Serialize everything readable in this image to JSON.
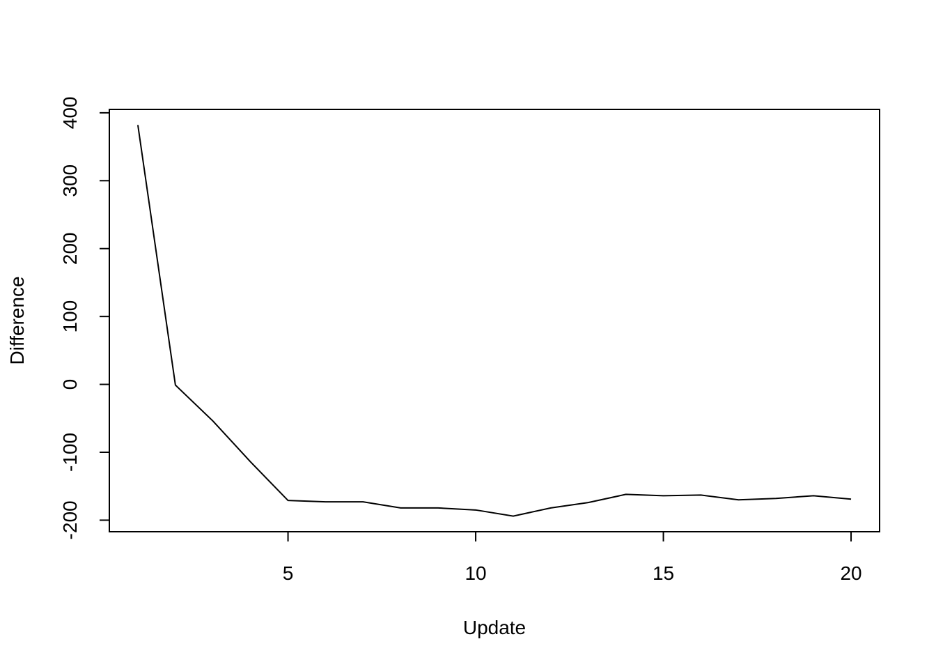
{
  "chart_data": {
    "type": "line",
    "title": "",
    "xlabel": "Update",
    "ylabel": "Difference",
    "x": [
      1,
      2,
      3,
      4,
      5,
      6,
      7,
      8,
      9,
      10,
      11,
      12,
      13,
      14,
      15,
      16,
      17,
      18,
      19,
      20
    ],
    "y": [
      382,
      -1,
      -54,
      -114,
      -171,
      -173,
      -173,
      -182,
      -182,
      -185,
      -194,
      -182,
      -174,
      -162,
      -164,
      -163,
      -170,
      -168,
      -164,
      -169
    ],
    "xlim": [
      0.24,
      20.76
    ],
    "ylim": [
      -217,
      405
    ],
    "xticks": [
      5,
      10,
      15,
      20
    ],
    "xtick_labels": [
      "5",
      "10",
      "15",
      "20"
    ],
    "yticks": [
      -200,
      -100,
      0,
      100,
      200,
      300,
      400
    ],
    "ytick_labels": [
      "-200",
      "-100",
      "0",
      "100",
      "200",
      "300",
      "400"
    ],
    "grid": false,
    "line_color": "#000000"
  }
}
